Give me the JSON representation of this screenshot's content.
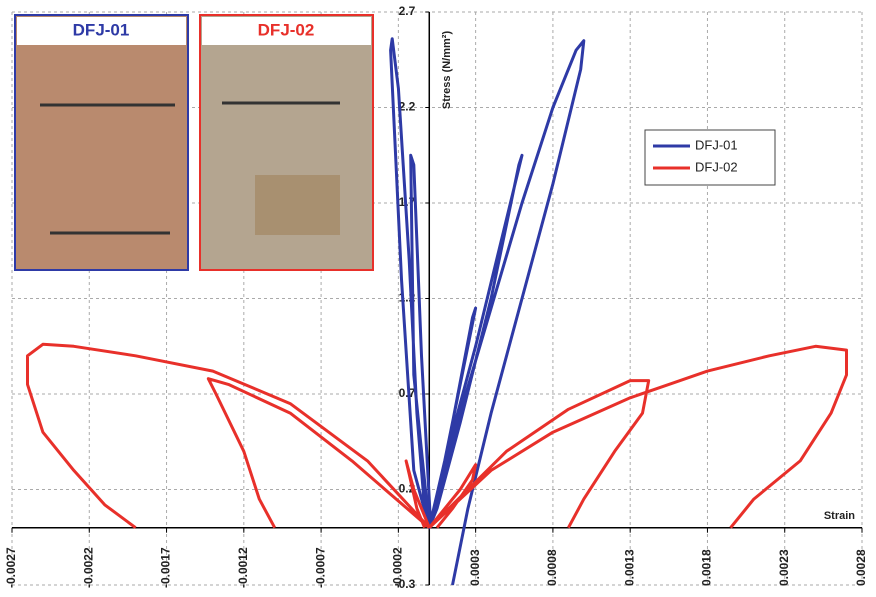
{
  "chart_data": {
    "type": "line",
    "xlabel": "Strain",
    "ylabel": "Stress (N/mm²)",
    "xlim": [
      -0.0027,
      0.0028
    ],
    "xticks": [
      -0.0027,
      -0.0022,
      -0.0017,
      -0.0012,
      -0.0007,
      -0.0002,
      0.0003,
      0.0008,
      0.0013,
      0.0018,
      0.0023,
      0.0028
    ],
    "ylim": [
      -0.3,
      2.7
    ],
    "yticks": [
      -0.3,
      0.2,
      0.7,
      1.2,
      1.7,
      2.2,
      2.7
    ],
    "grid": true,
    "legend": "upper right",
    "photo_labels": [
      "DFJ-01",
      "DFJ-02"
    ],
    "series": [
      {
        "name": "DFJ-01",
        "color": "#2e3aa6",
        "x": [
          0,
          0.0001,
          0.0002,
          0.0003,
          0.00028,
          0.00015,
          5e-05,
          0,
          0.00015,
          0.0003,
          0.00045,
          0.0006,
          0.00058,
          0.0004,
          0.0002,
          5e-05,
          0,
          0.0002,
          0.0004,
          0.0006,
          0.0008,
          0.00095,
          0.001,
          0.00098,
          0.0008,
          0.0006,
          0.0004,
          0.00025,
          0.00015,
          null,
          0,
          -0.0001,
          -0.00018,
          -0.00025,
          -0.00024,
          -0.0002,
          -0.00013,
          -8e-05,
          -3e-05,
          0,
          -0.0001,
          -0.00012,
          -0.0001,
          -5e-05,
          1e-05
        ],
        "values": [
          0,
          0.35,
          0.75,
          1.15,
          1.1,
          0.55,
          0.15,
          0,
          0.5,
          0.95,
          1.45,
          1.95,
          1.9,
          1.2,
          0.55,
          0.1,
          0,
          0.6,
          1.15,
          1.7,
          2.2,
          2.5,
          2.55,
          2.4,
          1.8,
          1.2,
          0.6,
          0.1,
          -0.3,
          null,
          0,
          0.3,
          1.3,
          2.5,
          2.56,
          2.3,
          1.4,
          0.6,
          0.1,
          0,
          0.8,
          1.95,
          1.9,
          0.9,
          0
        ]
      },
      {
        "name": "DFJ-02",
        "color": "#e8302a",
        "x": [
          0,
          0.0004,
          0.0008,
          0.0013,
          0.0018,
          0.0022,
          0.0025,
          0.0027,
          0.0027,
          0.0026,
          0.0024,
          0.0021,
          0.00195,
          null,
          0,
          0.0005,
          0.0009,
          0.0013,
          0.00142,
          0.00138,
          0.0012,
          0.001,
          0.0009,
          null,
          0,
          0.0002,
          0.0003,
          0.00028,
          0.00015,
          5e-05,
          null,
          0,
          -0.0004,
          -0.0009,
          -0.0014,
          -0.0019,
          -0.0023,
          -0.0025,
          -0.0026,
          -0.0026,
          -0.0025,
          -0.0023,
          -0.0021,
          -0.0019,
          null,
          0,
          -0.0005,
          -0.0009,
          -0.0013,
          -0.00143,
          -0.00138,
          -0.0012,
          -0.0011,
          -0.001,
          null,
          0,
          -0.0001,
          -0.00015,
          -0.00013,
          -8e-05,
          -3e-05
        ],
        "values": [
          0,
          0.3,
          0.5,
          0.68,
          0.82,
          0.9,
          0.95,
          0.93,
          0.8,
          0.6,
          0.35,
          0.15,
          0,
          null,
          0,
          0.4,
          0.62,
          0.77,
          0.77,
          0.6,
          0.4,
          0.15,
          0,
          null,
          0,
          0.2,
          0.33,
          0.25,
          0.1,
          0,
          null,
          0,
          0.35,
          0.65,
          0.82,
          0.9,
          0.95,
          0.96,
          0.9,
          0.75,
          0.5,
          0.3,
          0.12,
          0,
          null,
          0,
          0.35,
          0.6,
          0.75,
          0.78,
          0.7,
          0.4,
          0.15,
          0,
          null,
          0,
          0.2,
          0.35,
          0.28,
          0.1,
          0
        ]
      }
    ]
  }
}
